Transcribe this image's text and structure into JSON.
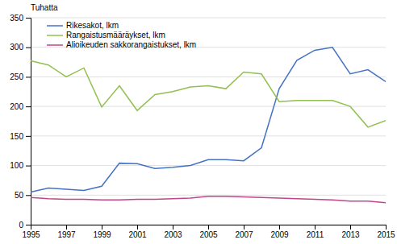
{
  "chart_data": {
    "type": "line",
    "ylabel": "Tuhatta",
    "x": [
      1995,
      1996,
      1997,
      1998,
      1999,
      2000,
      2001,
      2002,
      2003,
      2004,
      2005,
      2006,
      2007,
      2008,
      2009,
      2010,
      2011,
      2012,
      2013,
      2014,
      2015
    ],
    "series": [
      {
        "name": "Rikesakot, lkm",
        "color": "#4472C4",
        "values": [
          55,
          62,
          60,
          58,
          65,
          104,
          103,
          95,
          97,
          100,
          110,
          110,
          108,
          130,
          230,
          278,
          295,
          300,
          255,
          262,
          242
        ]
      },
      {
        "name": "Rangaistusmääräykset, lkm",
        "color": "#92C050",
        "values": [
          277,
          270,
          250,
          265,
          199,
          235,
          193,
          220,
          225,
          233,
          235,
          230,
          258,
          255,
          208,
          210,
          210,
          210,
          200,
          165,
          176
        ]
      },
      {
        "name": "Alioikeuden sakkorangaistukset, lkm",
        "color": "#C0458B",
        "values": [
          46,
          44,
          43,
          43,
          42,
          42,
          43,
          43,
          44,
          45,
          48,
          48,
          47,
          46,
          45,
          44,
          43,
          42,
          40,
          40,
          37
        ]
      }
    ],
    "xlim": [
      1995,
      2015
    ],
    "xticks": [
      1995,
      1997,
      1999,
      2001,
      2003,
      2005,
      2007,
      2009,
      2011,
      2013,
      2015
    ],
    "ylim": [
      0,
      350
    ],
    "yticks": [
      0,
      50,
      100,
      150,
      200,
      250,
      300,
      350
    ],
    "grid": true,
    "legend": "top-left"
  }
}
